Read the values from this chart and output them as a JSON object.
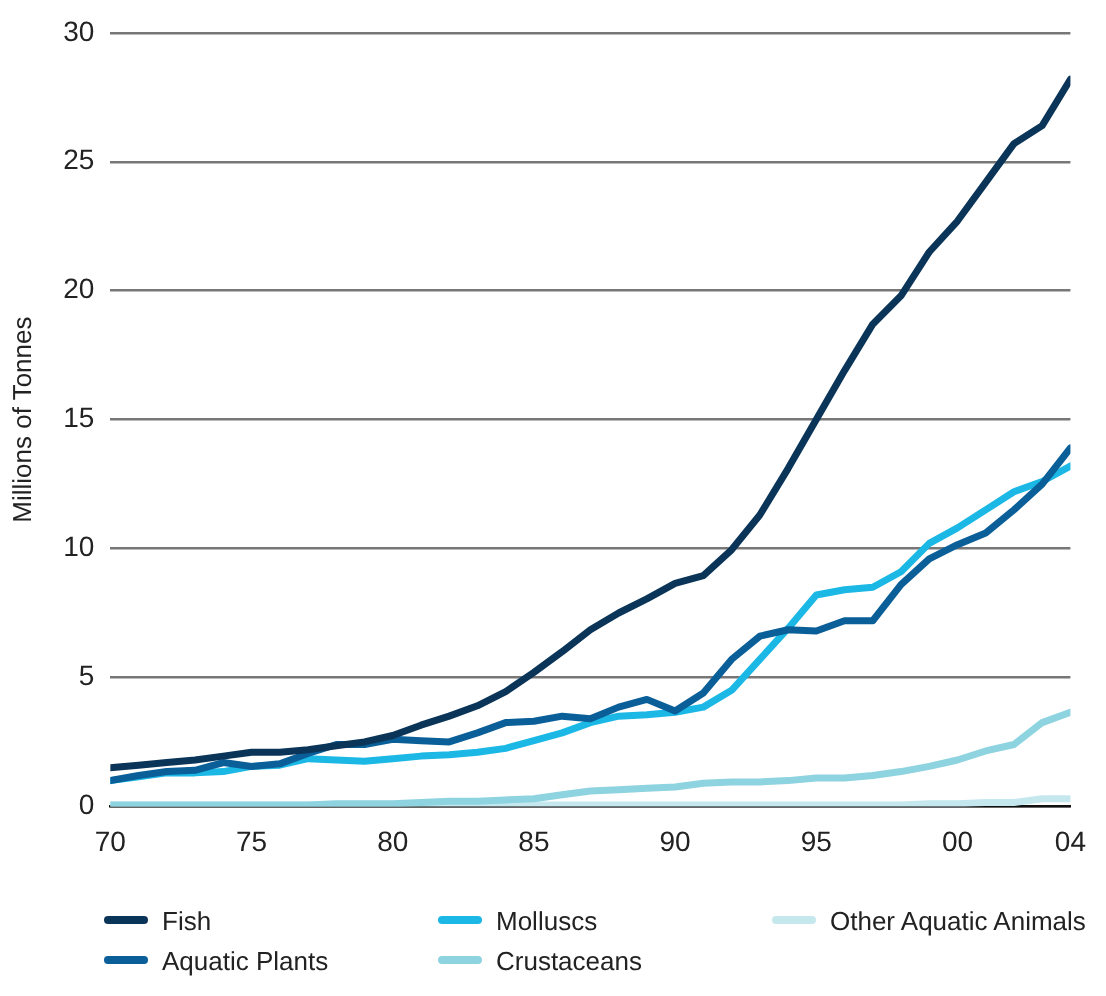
{
  "chart_data": {
    "type": "line",
    "ylabel": "Millions of Tonnes",
    "x": [
      1970,
      1971,
      1972,
      1973,
      1974,
      1975,
      1976,
      1977,
      1978,
      1979,
      1980,
      1981,
      1982,
      1983,
      1984,
      1985,
      1986,
      1987,
      1988,
      1989,
      1990,
      1991,
      1992,
      1993,
      1994,
      1995,
      1996,
      1997,
      1998,
      1999,
      2000,
      2001,
      2002,
      2003,
      2004
    ],
    "series": [
      {
        "name": "Fish",
        "color": "#0b3558",
        "values": [
          1.5,
          1.6,
          1.7,
          1.8,
          1.95,
          2.1,
          2.1,
          2.2,
          2.35,
          2.5,
          2.75,
          3.15,
          3.5,
          3.9,
          4.45,
          5.2,
          6.0,
          6.85,
          7.5,
          8.05,
          8.65,
          8.95,
          9.95,
          11.3,
          13.1,
          15.0,
          16.9,
          18.7,
          19.8,
          21.5,
          22.7,
          24.2,
          25.7,
          26.4,
          28.2
        ]
      },
      {
        "name": "Aquatic Plants",
        "color": "#0a5f99",
        "values": [
          1.0,
          1.2,
          1.35,
          1.4,
          1.7,
          1.55,
          1.65,
          2.05,
          2.4,
          2.4,
          2.6,
          2.55,
          2.5,
          2.85,
          3.25,
          3.3,
          3.5,
          3.4,
          3.85,
          4.15,
          3.7,
          4.4,
          5.7,
          6.6,
          6.85,
          6.8,
          7.2,
          7.2,
          8.6,
          9.6,
          10.15,
          10.6,
          11.5,
          12.5,
          13.9
        ]
      },
      {
        "name": "Molluscs",
        "color": "#1bb8e6",
        "values": [
          1.0,
          1.15,
          1.3,
          1.3,
          1.35,
          1.55,
          1.6,
          1.85,
          1.8,
          1.75,
          1.85,
          1.95,
          2.0,
          2.1,
          2.25,
          2.55,
          2.85,
          3.25,
          3.5,
          3.55,
          3.65,
          3.85,
          4.5,
          5.7,
          6.9,
          8.2,
          8.4,
          8.5,
          9.1,
          10.2,
          10.8,
          11.5,
          12.2,
          12.6,
          13.2
        ]
      },
      {
        "name": "Crustaceans",
        "color": "#8dd3e0",
        "values": [
          0.05,
          0.05,
          0.05,
          0.05,
          0.05,
          0.05,
          0.05,
          0.05,
          0.1,
          0.1,
          0.1,
          0.15,
          0.2,
          0.2,
          0.25,
          0.3,
          0.45,
          0.6,
          0.65,
          0.7,
          0.75,
          0.9,
          0.95,
          0.95,
          1.0,
          1.1,
          1.1,
          1.2,
          1.35,
          1.55,
          1.8,
          2.15,
          2.4,
          3.25,
          3.65
        ]
      },
      {
        "name": "Other Aquatic Animals",
        "color": "#c5e8ef",
        "values": [
          0.05,
          0.05,
          0.05,
          0.05,
          0.05,
          0.05,
          0.05,
          0.05,
          0.05,
          0.05,
          0.05,
          0.05,
          0.05,
          0.05,
          0.05,
          0.05,
          0.05,
          0.05,
          0.05,
          0.05,
          0.05,
          0.05,
          0.05,
          0.05,
          0.05,
          0.05,
          0.05,
          0.05,
          0.05,
          0.1,
          0.1,
          0.15,
          0.15,
          0.3,
          0.3
        ]
      }
    ],
    "xlim": [
      1970,
      2004
    ],
    "xticks": [
      {
        "value": 1970,
        "label": "70"
      },
      {
        "value": 1975,
        "label": "75"
      },
      {
        "value": 1980,
        "label": "80"
      },
      {
        "value": 1985,
        "label": "85"
      },
      {
        "value": 1990,
        "label": "90"
      },
      {
        "value": 1995,
        "label": "95"
      },
      {
        "value": 2000,
        "label": "00"
      },
      {
        "value": 2004,
        "label": "04"
      }
    ],
    "ylim": [
      0,
      30
    ],
    "yticks": [
      0,
      5,
      10,
      15,
      20,
      25,
      30
    ],
    "grid": "y",
    "legend": "bottom",
    "marker": "none",
    "line_style": "solid"
  }
}
